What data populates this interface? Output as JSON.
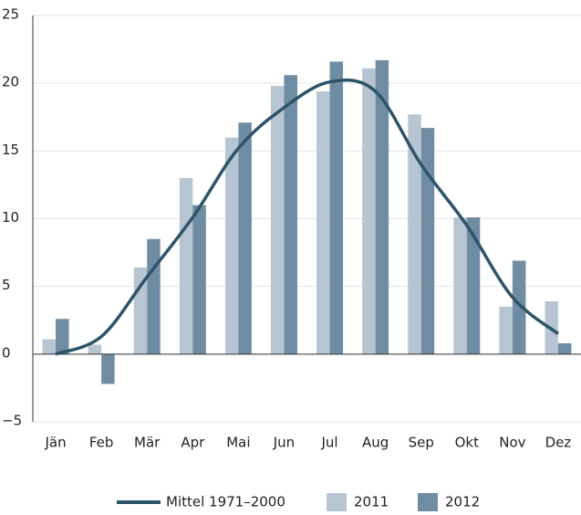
{
  "chart_data": {
    "type": "bar",
    "categories": [
      "Jän",
      "Feb",
      "Mär",
      "Apr",
      "Mai",
      "Jun",
      "Jul",
      "Aug",
      "Sep",
      "Okt",
      "Nov",
      "Dez"
    ],
    "series": [
      {
        "name": "Mittel 1971–2000",
        "type": "line",
        "color": "#2d5468",
        "values": [
          0.0,
          1.3,
          5.7,
          10.1,
          15.2,
          18.2,
          20.1,
          19.4,
          14.0,
          9.5,
          4.2,
          1.5
        ]
      },
      {
        "name": "2011",
        "type": "bar",
        "color": "#b7c5d3",
        "values": [
          1.1,
          0.7,
          6.4,
          13.0,
          16.0,
          19.8,
          19.4,
          21.1,
          17.7,
          10.1,
          3.5,
          3.9
        ]
      },
      {
        "name": "2012",
        "type": "bar",
        "color": "#6f8ca2",
        "values": [
          2.6,
          -2.2,
          8.5,
          11.0,
          17.1,
          20.6,
          21.6,
          21.7,
          16.7,
          10.1,
          6.9,
          0.8
        ]
      }
    ],
    "ylim": [
      -5,
      25
    ],
    "yticks": [
      {
        "value": -5,
        "label": "−5"
      },
      0,
      5,
      10,
      15,
      20,
      25
    ],
    "grid": true,
    "legend": "bottom"
  }
}
